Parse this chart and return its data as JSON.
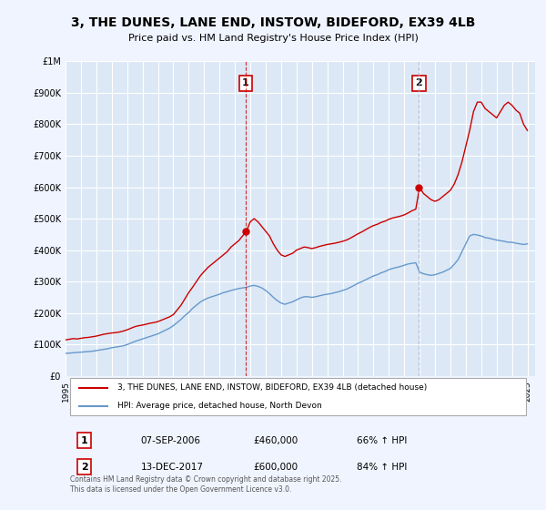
{
  "title": "3, THE DUNES, LANE END, INSTOW, BIDEFORD, EX39 4LB",
  "subtitle": "Price paid vs. HM Land Registry's House Price Index (HPI)",
  "background_color": "#f0f4ff",
  "plot_bg_color": "#dce8f5",
  "grid_color": "#ffffff",
  "ylabel_ticks": [
    "£0",
    "£100K",
    "£200K",
    "£300K",
    "£400K",
    "£500K",
    "£600K",
    "£700K",
    "£800K",
    "£900K",
    "£1M"
  ],
  "ytick_values": [
    0,
    100000,
    200000,
    300000,
    400000,
    500000,
    600000,
    700000,
    800000,
    900000,
    1000000
  ],
  "ylim": [
    0,
    1000000
  ],
  "xlim_start": 1995.0,
  "xlim_end": 2025.5,
  "xtick_years": [
    1995,
    1996,
    1997,
    1998,
    1999,
    2000,
    2001,
    2002,
    2003,
    2004,
    2005,
    2006,
    2007,
    2008,
    2009,
    2010,
    2011,
    2012,
    2013,
    2014,
    2015,
    2016,
    2017,
    2018,
    2019,
    2020,
    2021,
    2022,
    2023,
    2024,
    2025
  ],
  "red_line_color": "#cc0000",
  "blue_line_color": "#6699cc",
  "sale1_x": 2006.69,
  "sale1_y": 460000,
  "sale1_label": "1",
  "sale1_date": "07-SEP-2006",
  "sale1_price": "£460,000",
  "sale1_hpi": "66% ↑ HPI",
  "sale2_x": 2017.96,
  "sale2_y": 600000,
  "sale2_label": "2",
  "sale2_date": "13-DEC-2017",
  "sale2_price": "£600,000",
  "sale2_hpi": "84% ↑ HPI",
  "legend_label1": "3, THE DUNES, LANE END, INSTOW, BIDEFORD, EX39 4LB (detached house)",
  "legend_label2": "HPI: Average price, detached house, North Devon",
  "footer": "Contains HM Land Registry data © Crown copyright and database right 2025.\nThis data is licensed under the Open Government Licence v3.0.",
  "red_x": [
    1995.0,
    1995.25,
    1995.5,
    1995.75,
    1996.0,
    1996.25,
    1996.5,
    1996.75,
    1997.0,
    1997.25,
    1997.5,
    1997.75,
    1998.0,
    1998.25,
    1998.5,
    1998.75,
    1999.0,
    1999.25,
    1999.5,
    1999.75,
    2000.0,
    2000.25,
    2000.5,
    2000.75,
    2001.0,
    2001.25,
    2001.5,
    2001.75,
    2002.0,
    2002.25,
    2002.5,
    2002.75,
    2003.0,
    2003.25,
    2003.5,
    2003.75,
    2004.0,
    2004.25,
    2004.5,
    2004.75,
    2005.0,
    2005.25,
    2005.5,
    2005.75,
    2006.0,
    2006.25,
    2006.5,
    2006.75,
    2007.0,
    2007.25,
    2007.5,
    2007.75,
    2008.0,
    2008.25,
    2008.5,
    2008.75,
    2009.0,
    2009.25,
    2009.5,
    2009.75,
    2010.0,
    2010.25,
    2010.5,
    2010.75,
    2011.0,
    2011.25,
    2011.5,
    2011.75,
    2012.0,
    2012.25,
    2012.5,
    2012.75,
    2013.0,
    2013.25,
    2013.5,
    2013.75,
    2014.0,
    2014.25,
    2014.5,
    2014.75,
    2015.0,
    2015.25,
    2015.5,
    2015.75,
    2016.0,
    2016.25,
    2016.5,
    2016.75,
    2017.0,
    2017.25,
    2017.5,
    2017.75,
    2018.0,
    2018.25,
    2018.5,
    2018.75,
    2019.0,
    2019.25,
    2019.5,
    2019.75,
    2020.0,
    2020.25,
    2020.5,
    2020.75,
    2021.0,
    2021.25,
    2021.5,
    2021.75,
    2022.0,
    2022.25,
    2022.5,
    2022.75,
    2023.0,
    2023.25,
    2023.5,
    2023.75,
    2024.0,
    2024.25,
    2024.5,
    2024.75,
    2025.0
  ],
  "red_y": [
    115000,
    117000,
    119000,
    118000,
    120000,
    122000,
    123000,
    125000,
    127000,
    130000,
    133000,
    135000,
    137000,
    138000,
    140000,
    143000,
    147000,
    152000,
    157000,
    160000,
    162000,
    165000,
    168000,
    170000,
    173000,
    178000,
    183000,
    188000,
    195000,
    210000,
    225000,
    245000,
    265000,
    282000,
    300000,
    318000,
    332000,
    345000,
    355000,
    365000,
    375000,
    385000,
    395000,
    410000,
    420000,
    430000,
    445000,
    460000,
    490000,
    500000,
    490000,
    475000,
    460000,
    445000,
    420000,
    400000,
    385000,
    380000,
    385000,
    390000,
    400000,
    405000,
    410000,
    408000,
    405000,
    408000,
    412000,
    415000,
    418000,
    420000,
    422000,
    425000,
    428000,
    432000,
    438000,
    445000,
    452000,
    458000,
    465000,
    472000,
    478000,
    482000,
    488000,
    492000,
    498000,
    502000,
    505000,
    508000,
    512000,
    518000,
    525000,
    530000,
    600000,
    580000,
    570000,
    560000,
    555000,
    560000,
    570000,
    580000,
    590000,
    610000,
    640000,
    680000,
    730000,
    780000,
    840000,
    870000,
    870000,
    850000,
    840000,
    830000,
    820000,
    840000,
    860000,
    870000,
    860000,
    845000,
    835000,
    800000,
    780000
  ],
  "blue_x": [
    1995.0,
    1995.25,
    1995.5,
    1995.75,
    1996.0,
    1996.25,
    1996.5,
    1996.75,
    1997.0,
    1997.25,
    1997.5,
    1997.75,
    1998.0,
    1998.25,
    1998.5,
    1998.75,
    1999.0,
    1999.25,
    1999.5,
    1999.75,
    2000.0,
    2000.25,
    2000.5,
    2000.75,
    2001.0,
    2001.25,
    2001.5,
    2001.75,
    2002.0,
    2002.25,
    2002.5,
    2002.75,
    2003.0,
    2003.25,
    2003.5,
    2003.75,
    2004.0,
    2004.25,
    2004.5,
    2004.75,
    2005.0,
    2005.25,
    2005.5,
    2005.75,
    2006.0,
    2006.25,
    2006.5,
    2006.75,
    2007.0,
    2007.25,
    2007.5,
    2007.75,
    2008.0,
    2008.25,
    2008.5,
    2008.75,
    2009.0,
    2009.25,
    2009.5,
    2009.75,
    2010.0,
    2010.25,
    2010.5,
    2010.75,
    2011.0,
    2011.25,
    2011.5,
    2011.75,
    2012.0,
    2012.25,
    2012.5,
    2012.75,
    2013.0,
    2013.25,
    2013.5,
    2013.75,
    2014.0,
    2014.25,
    2014.5,
    2014.75,
    2015.0,
    2015.25,
    2015.5,
    2015.75,
    2016.0,
    2016.25,
    2016.5,
    2016.75,
    2017.0,
    2017.25,
    2017.5,
    2017.75,
    2018.0,
    2018.25,
    2018.5,
    2018.75,
    2019.0,
    2019.25,
    2019.5,
    2019.75,
    2020.0,
    2020.25,
    2020.5,
    2020.75,
    2021.0,
    2021.25,
    2021.5,
    2021.75,
    2022.0,
    2022.25,
    2022.5,
    2022.75,
    2023.0,
    2023.25,
    2023.5,
    2023.75,
    2024.0,
    2024.25,
    2024.5,
    2024.75,
    2025.0
  ],
  "blue_y": [
    72000,
    73000,
    74000,
    75000,
    76000,
    77000,
    78000,
    79000,
    81000,
    83000,
    85000,
    87000,
    90000,
    92000,
    94000,
    96000,
    100000,
    105000,
    110000,
    114000,
    118000,
    122000,
    126000,
    130000,
    134000,
    140000,
    146000,
    152000,
    160000,
    170000,
    180000,
    192000,
    202000,
    215000,
    225000,
    235000,
    242000,
    248000,
    252000,
    256000,
    260000,
    265000,
    268000,
    272000,
    275000,
    278000,
    280000,
    282000,
    286000,
    288000,
    285000,
    280000,
    272000,
    262000,
    250000,
    240000,
    232000,
    228000,
    232000,
    236000,
    242000,
    248000,
    252000,
    252000,
    250000,
    252000,
    255000,
    258000,
    260000,
    262000,
    265000,
    268000,
    272000,
    276000,
    282000,
    288000,
    295000,
    300000,
    306000,
    312000,
    318000,
    322000,
    328000,
    332000,
    338000,
    342000,
    345000,
    348000,
    352000,
    356000,
    358000,
    360000,
    330000,
    325000,
    322000,
    320000,
    322000,
    326000,
    330000,
    336000,
    342000,
    355000,
    370000,
    395000,
    420000,
    445000,
    450000,
    448000,
    445000,
    440000,
    438000,
    435000,
    432000,
    430000,
    428000,
    425000,
    425000,
    422000,
    420000,
    418000,
    420000
  ]
}
